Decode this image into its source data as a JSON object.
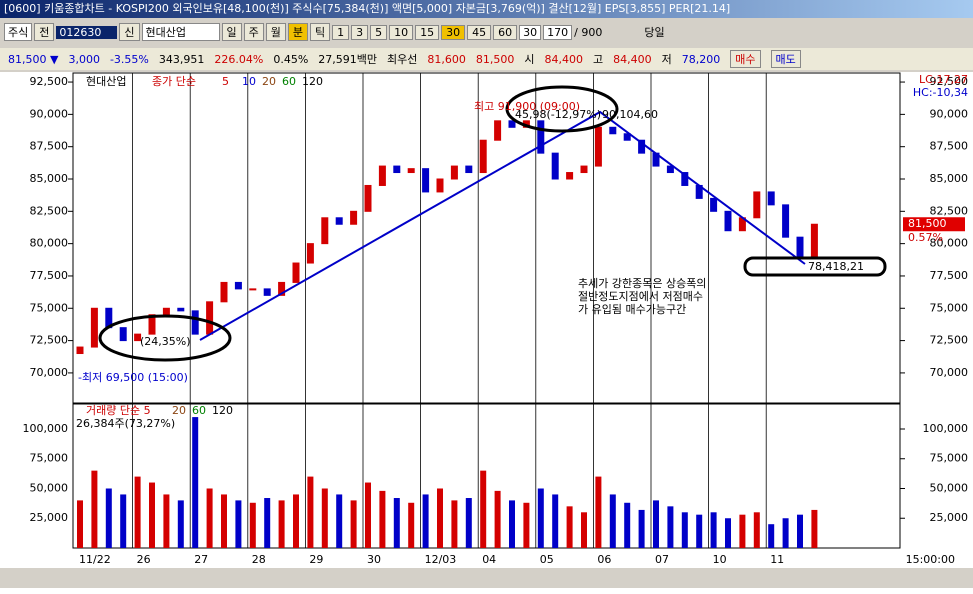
{
  "window": {
    "title": "[0600] 키움종합차트 - KOSPI200 외국인보유[48,100(천)] 주식수[75,384(천)] 액면[5,000] 자본금[3,769(억)] 결산[12월] EPS[3,855] PER[21.14]"
  },
  "toolbar": {
    "market": "주식",
    "prev": "전",
    "code": "012630",
    "new": "신",
    "name": "현대산업",
    "periods": [
      "일",
      "주",
      "월",
      "분",
      "틱"
    ],
    "minutes": [
      "1",
      "3",
      "5",
      "10",
      "15",
      "30",
      "45",
      "60"
    ],
    "minute_sel": "30",
    "count": "170",
    "max": "/ 900",
    "today": "당일"
  },
  "quote": {
    "price": "81,500 ▼",
    "change": "3,000",
    "rate": "-3.55%",
    "volume": "343,951",
    "vol_rate": "226.04%",
    "turnover": "0.45%",
    "amount": "27,591백만",
    "best": "최우선",
    "ask": "81,600",
    "bid": "81,500",
    "open_label": "시",
    "open": "84,400",
    "high_label": "고",
    "high": "84,400",
    "low_label": "저",
    "low": "78,200",
    "buy": "매수",
    "sell": "매도"
  },
  "chart_data": {
    "type": "candlestick",
    "stock": "현대산업",
    "ma_label": "종가 단순",
    "ma_periods": [
      "5",
      "10",
      "20",
      "60",
      "120"
    ],
    "lc": "LC:17,27",
    "hc": "HC:-10,34",
    "annotations": {
      "high": "최고 91,900 (09:00)",
      "drop": "45,98(-12,97%)",
      "peak": "90,104,60",
      "rise": "(24,35%)",
      "bottom": "78,418,21",
      "low": "-최저 69,500 (15:00)",
      "note": [
        "추세가 강한종목은 상승폭의",
        "절반정도지점에서 저점매수",
        "가 유입됨 매수가능구간"
      ]
    },
    "last_price": "81,500",
    "last_rate": "0.57%",
    "volume_label": "거래량 단순 5",
    "volume_ma": [
      "20",
      "60",
      "120"
    ],
    "volume_info": "26,384주(73,27%)",
    "dates": [
      "11/22",
      "26",
      "27",
      "28",
      "29",
      "30",
      "12/03",
      "04",
      "05",
      "06",
      "07",
      "10",
      "11"
    ],
    "time_label": "15:00:00",
    "open": [
      71500,
      72000,
      75000,
      73500,
      72500,
      73000,
      74500,
      75000,
      74800,
      73000,
      75500,
      77000,
      76500,
      76500,
      76000,
      77000,
      78500,
      80000,
      82000,
      81500,
      82500,
      84500,
      86000,
      85500,
      85800,
      84000,
      85000,
      86000,
      85500,
      88000,
      89500,
      89000,
      89500,
      87000,
      85000,
      85500,
      86000,
      89000,
      88500,
      88000,
      87000,
      86000,
      85500,
      84500,
      83500,
      82500,
      81000,
      82000,
      84000,
      83000,
      80500,
      79000
    ],
    "close": [
      72000,
      75000,
      73500,
      72500,
      73000,
      74500,
      75000,
      74800,
      73000,
      75500,
      77000,
      76500,
      76500,
      76000,
      77000,
      78500,
      80000,
      82000,
      81500,
      82500,
      84500,
      86000,
      85500,
      85800,
      84000,
      85000,
      86000,
      85500,
      88000,
      89500,
      89000,
      89500,
      87000,
      85000,
      85500,
      86000,
      89000,
      88500,
      88000,
      87000,
      86000,
      85500,
      84500,
      83500,
      82500,
      81000,
      82000,
      84000,
      83000,
      80500,
      79000,
      81500
    ],
    "volume": [
      40000,
      65000,
      50000,
      45000,
      60000,
      55000,
      45000,
      40000,
      110000,
      50000,
      45000,
      40000,
      38000,
      42000,
      40000,
      45000,
      60000,
      50000,
      45000,
      40000,
      55000,
      48000,
      42000,
      38000,
      45000,
      50000,
      40000,
      42000,
      65000,
      48000,
      40000,
      38000,
      50000,
      45000,
      35000,
      30000,
      60000,
      45000,
      38000,
      32000,
      40000,
      35000,
      30000,
      28000,
      30000,
      25000,
      28000,
      30000,
      20000,
      25000,
      28000,
      32000
    ],
    "ylim": [
      67750,
      93200
    ],
    "yticks": [
      {
        "value": 70000,
        "label": "70,000"
      },
      {
        "value": 72500,
        "label": "72,500"
      },
      {
        "value": 75000,
        "label": "75,000"
      },
      {
        "value": 77500,
        "label": "77,500"
      },
      {
        "value": 80000,
        "label": "80,000"
      },
      {
        "value": 82500,
        "label": "82,500"
      },
      {
        "value": 85000,
        "label": "85,000"
      },
      {
        "value": 87500,
        "label": "87,500"
      },
      {
        "value": 90000,
        "label": "90,000"
      },
      {
        "value": 92500,
        "label": "92,500"
      }
    ],
    "y2lim": [
      0,
      121000
    ],
    "y2ticks": [
      {
        "value": 25000,
        "label": "25,000"
      },
      {
        "value": 50000,
        "label": "50,000"
      },
      {
        "value": 75000,
        "label": "75,000"
      },
      {
        "value": 100000,
        "label": "100,000"
      }
    ],
    "up_color": "#d40000",
    "down_color": "#0000c8"
  }
}
